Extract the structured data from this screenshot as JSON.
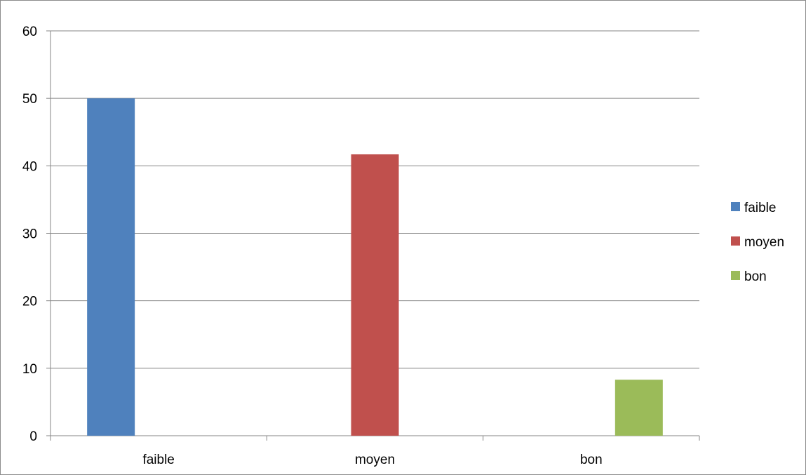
{
  "chart_data": {
    "type": "bar",
    "title": "",
    "xlabel": "",
    "ylabel": "",
    "categories": [
      "faible",
      "moyen",
      "bon"
    ],
    "series": [
      {
        "name": "faible",
        "color": "#4F81BD",
        "values": [
          50,
          0,
          0
        ]
      },
      {
        "name": "moyen",
        "color": "#C0504D",
        "values": [
          0,
          41.7,
          0
        ]
      },
      {
        "name": "bon",
        "color": "#9BBB59",
        "values": [
          0,
          0,
          8.3
        ]
      }
    ],
    "ylim": [
      0,
      60
    ],
    "yticks": [
      "0",
      "10",
      "20",
      "30",
      "40",
      "50",
      "60"
    ],
    "grid": true,
    "legend_position": "right"
  }
}
